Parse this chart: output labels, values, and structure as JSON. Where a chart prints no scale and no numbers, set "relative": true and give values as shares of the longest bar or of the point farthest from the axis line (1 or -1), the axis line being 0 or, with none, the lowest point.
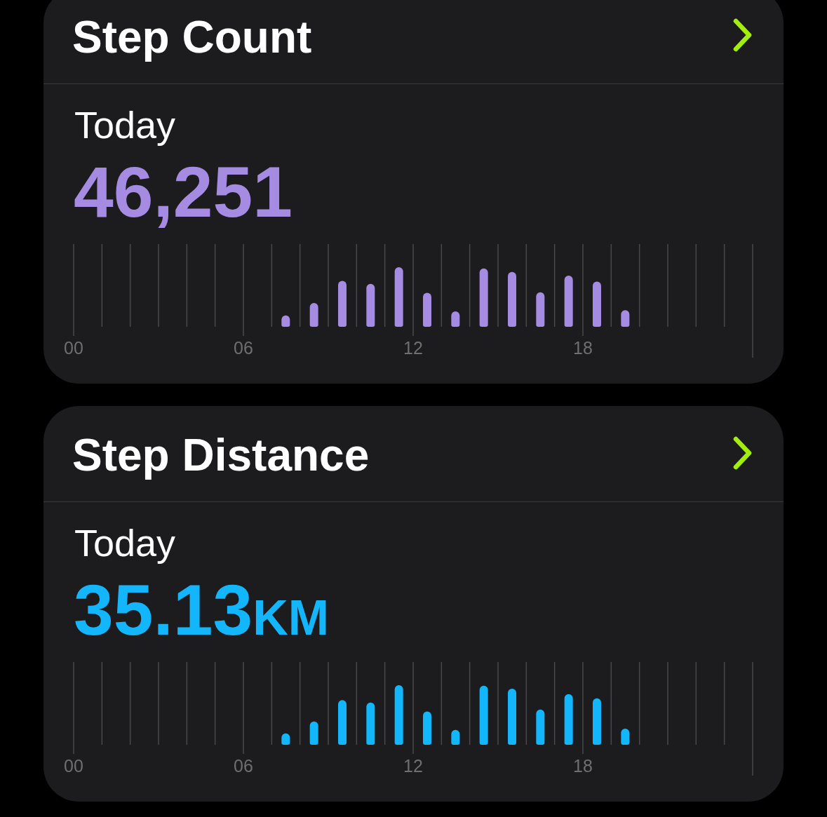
{
  "chart_data": [
    {
      "type": "bar",
      "title": "Step Count",
      "subtitle": "Today",
      "annotations": [
        "46,251"
      ],
      "x": [
        7.5,
        8.5,
        9.5,
        10.5,
        11.5,
        12.5,
        13.5,
        14.5,
        15.5,
        16.5,
        17.5,
        18.5,
        19.5
      ],
      "values": [
        0.19,
        0.4,
        0.77,
        0.72,
        1,
        0.57,
        0.26,
        0.98,
        0.92,
        0.58,
        0.86,
        0.76,
        0.28
      ],
      "color": "#a68be3",
      "relative": true,
      "xlim": [
        0,
        24
      ],
      "xticks": [
        {
          "value": 0,
          "label": "00"
        },
        {
          "value": 1,
          "label": null
        },
        {
          "value": 2,
          "label": null
        },
        {
          "value": 3,
          "label": null
        },
        {
          "value": 4,
          "label": null
        },
        {
          "value": 5,
          "label": null
        },
        {
          "value": 6,
          "label": "06"
        },
        {
          "value": 7,
          "label": null
        },
        {
          "value": 8,
          "label": null
        },
        {
          "value": 9,
          "label": null
        },
        {
          "value": 10,
          "label": null
        },
        {
          "value": 11,
          "label": null
        },
        {
          "value": 12,
          "label": "12"
        },
        {
          "value": 13,
          "label": null
        },
        {
          "value": 14,
          "label": null
        },
        {
          "value": 15,
          "label": null
        },
        {
          "value": 16,
          "label": null
        },
        {
          "value": 17,
          "label": null
        },
        {
          "value": 18,
          "label": "18"
        },
        {
          "value": 19,
          "label": null
        },
        {
          "value": 20,
          "label": null
        },
        {
          "value": 21,
          "label": null
        },
        {
          "value": 22,
          "label": null
        },
        {
          "value": 23,
          "label": null
        },
        {
          "value": 24,
          "label": null
        }
      ],
      "grid": "x"
    },
    {
      "type": "bar",
      "title": "Step Distance",
      "subtitle": "Today",
      "annotations": [
        "35.13KM"
      ],
      "x": [
        7.5,
        8.5,
        9.5,
        10.5,
        11.5,
        12.5,
        13.5,
        14.5,
        15.5,
        16.5,
        17.5,
        18.5,
        19.5
      ],
      "values": [
        0.19,
        0.39,
        0.75,
        0.71,
        1,
        0.56,
        0.25,
        0.99,
        0.94,
        0.59,
        0.85,
        0.78,
        0.27
      ],
      "color": "#13b6fb",
      "relative": true,
      "xlim": [
        0,
        24
      ],
      "xticks": [
        {
          "value": 0,
          "label": "00"
        },
        {
          "value": 1,
          "label": null
        },
        {
          "value": 2,
          "label": null
        },
        {
          "value": 3,
          "label": null
        },
        {
          "value": 4,
          "label": null
        },
        {
          "value": 5,
          "label": null
        },
        {
          "value": 6,
          "label": "06"
        },
        {
          "value": 7,
          "label": null
        },
        {
          "value": 8,
          "label": null
        },
        {
          "value": 9,
          "label": null
        },
        {
          "value": 10,
          "label": null
        },
        {
          "value": 11,
          "label": null
        },
        {
          "value": 12,
          "label": "12"
        },
        {
          "value": 13,
          "label": null
        },
        {
          "value": 14,
          "label": null
        },
        {
          "value": 15,
          "label": null
        },
        {
          "value": 16,
          "label": null
        },
        {
          "value": 17,
          "label": null
        },
        {
          "value": 18,
          "label": "18"
        },
        {
          "value": 19,
          "label": null
        },
        {
          "value": 20,
          "label": null
        },
        {
          "value": 21,
          "label": null
        },
        {
          "value": 22,
          "label": null
        },
        {
          "value": 23,
          "label": null
        },
        {
          "value": 24,
          "label": null
        }
      ],
      "grid": "x"
    }
  ]
}
